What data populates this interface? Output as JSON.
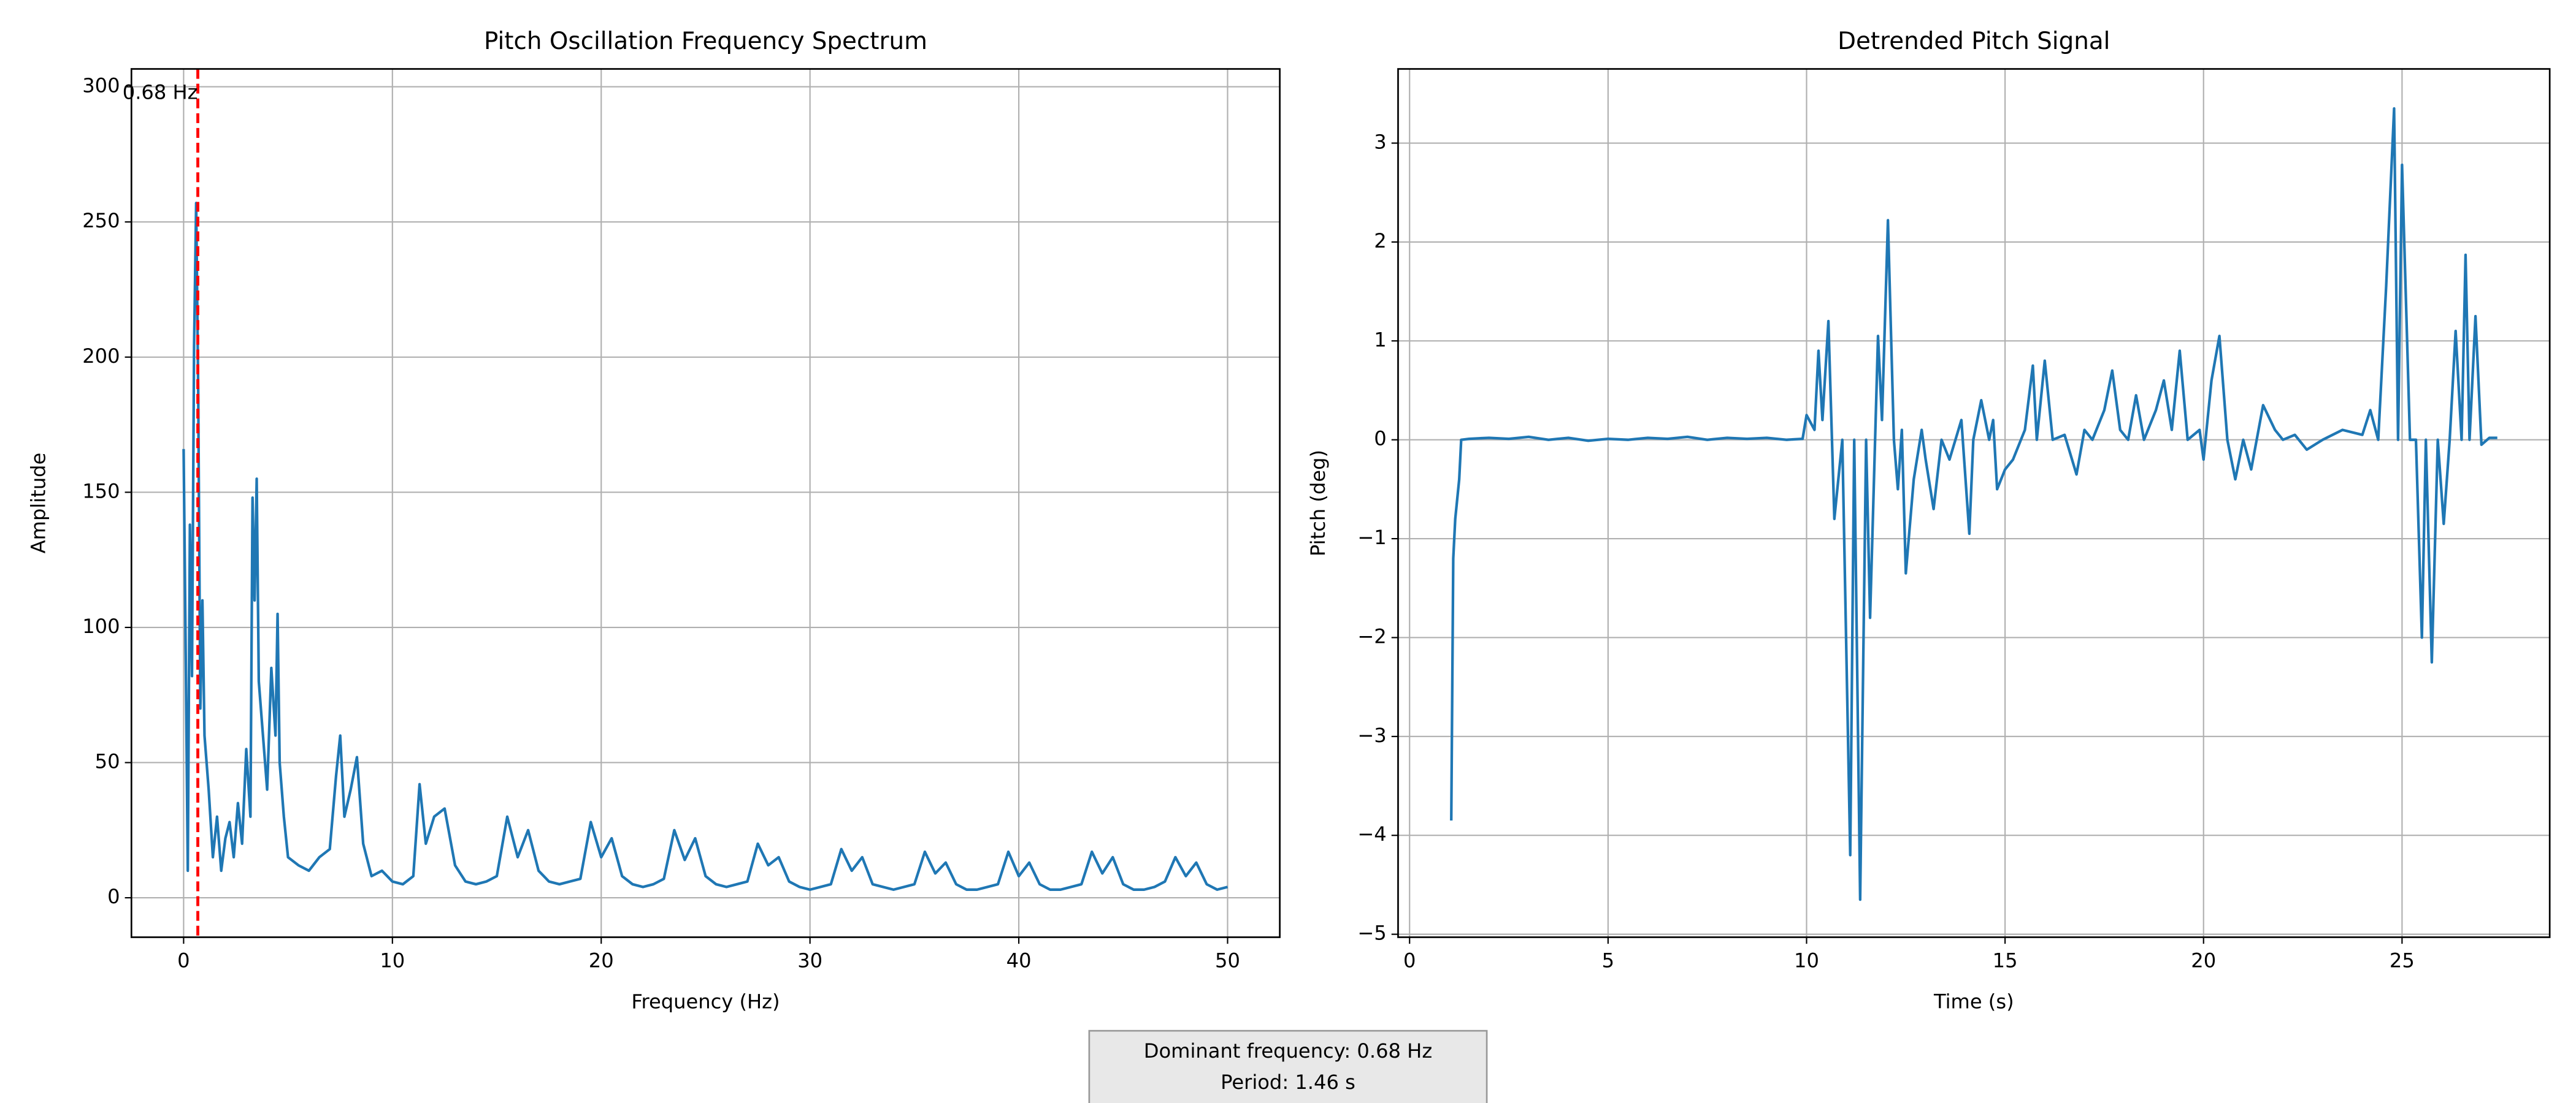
{
  "chart_data": [
    {
      "type": "line",
      "title": "Pitch Oscillation Frequency Spectrum",
      "x_label": "Frequency (Hz)",
      "y_label": "Amplitude",
      "color": "#1f77b4",
      "grid": true,
      "xlim": [
        -2.5,
        52.5
      ],
      "ylim": [
        -14.6,
        306.6
      ],
      "xticks": [
        0,
        10,
        20,
        30,
        40,
        50
      ],
      "yticks": [
        0,
        50,
        100,
        150,
        200,
        250,
        300
      ],
      "vline": {
        "value": 0.68,
        "label": "0.68 Hz",
        "color": "#ff0000"
      },
      "x": [
        0,
        0.1,
        0.2,
        0.3,
        0.4,
        0.5,
        0.6,
        0.7,
        0.8,
        0.9,
        1.0,
        1.2,
        1.4,
        1.6,
        1.8,
        2.0,
        2.2,
        2.4,
        2.6,
        2.8,
        3.0,
        3.2,
        3.3,
        3.4,
        3.5,
        3.6,
        3.8,
        4.0,
        4.2,
        4.4,
        4.5,
        4.6,
        4.8,
        5.0,
        5.5,
        6.0,
        6.5,
        7.0,
        7.3,
        7.5,
        7.7,
        8.0,
        8.3,
        8.6,
        9.0,
        9.5,
        10,
        10.5,
        11,
        11.3,
        11.6,
        12,
        12.5,
        13,
        13.5,
        14,
        14.5,
        15,
        15.5,
        16,
        16.5,
        17,
        17.5,
        18,
        18.5,
        19,
        19.5,
        20,
        20.5,
        21,
        21.5,
        22,
        22.5,
        23,
        23.5,
        24,
        24.5,
        25,
        25.5,
        26,
        26.5,
        27,
        27.5,
        28,
        28.5,
        29,
        29.5,
        30,
        30.5,
        31,
        31.5,
        32,
        32.5,
        33,
        33.5,
        34,
        34.5,
        35,
        35.5,
        36,
        36.5,
        37,
        37.5,
        38,
        38.5,
        39,
        39.5,
        40,
        40.5,
        41,
        41.5,
        42,
        42.5,
        43,
        43.5,
        44,
        44.5,
        45,
        45.5,
        46,
        46.5,
        47,
        47.5,
        48,
        48.5,
        49,
        49.5,
        50
      ],
      "values": [
        166,
        90,
        10,
        138,
        82,
        204,
        257,
        186,
        70,
        110,
        60,
        40,
        15,
        30,
        10,
        22,
        28,
        15,
        35,
        20,
        55,
        30,
        148,
        110,
        155,
        80,
        60,
        40,
        85,
        60,
        105,
        50,
        30,
        15,
        12,
        10,
        15,
        18,
        45,
        60,
        30,
        40,
        52,
        20,
        8,
        10,
        6,
        5,
        8,
        42,
        20,
        30,
        33,
        12,
        6,
        5,
        6,
        8,
        30,
        15,
        25,
        10,
        6,
        5,
        6,
        7,
        28,
        15,
        22,
        8,
        5,
        4,
        5,
        7,
        25,
        14,
        22,
        8,
        5,
        4,
        5,
        6,
        20,
        12,
        15,
        6,
        4,
        3,
        4,
        5,
        18,
        10,
        15,
        5,
        4,
        3,
        4,
        5,
        17,
        9,
        13,
        5,
        3,
        3,
        4,
        5,
        17,
        8,
        13,
        5,
        3,
        3,
        4,
        5,
        17,
        9,
        15,
        5,
        3,
        3,
        4,
        6,
        15,
        8,
        13,
        5,
        3,
        4
      ]
    },
    {
      "type": "line",
      "title": "Detrended Pitch Signal",
      "x_label": "Time (s)",
      "y_label": "Pitch (deg)",
      "color": "#1f77b4",
      "grid": true,
      "xlim": [
        -0.29,
        28.72
      ],
      "ylim": [
        -5.03,
        3.75
      ],
      "xticks": [
        0,
        5,
        10,
        15,
        20,
        25
      ],
      "yticks": [
        {
          "value": -5,
          "label": "−5"
        },
        {
          "value": -4,
          "label": "−4"
        },
        {
          "value": -3,
          "label": "−3"
        },
        {
          "value": -2,
          "label": "−2"
        },
        {
          "value": -1,
          "label": "−1"
        },
        0,
        1,
        2,
        3
      ],
      "x": [
        1.05,
        1.1,
        1.15,
        1.25,
        1.3,
        1.5,
        2,
        2.5,
        3,
        3.5,
        4,
        4.5,
        5,
        5.5,
        6,
        6.5,
        7,
        7.5,
        8,
        8.5,
        9,
        9.5,
        9.9,
        10,
        10.2,
        10.3,
        10.4,
        10.55,
        10.7,
        10.9,
        11.1,
        11.2,
        11.35,
        11.5,
        11.6,
        11.8,
        11.9,
        12.05,
        12.2,
        12.3,
        12.4,
        12.5,
        12.7,
        12.9,
        13.0,
        13.2,
        13.4,
        13.6,
        13.9,
        14.1,
        14.2,
        14.4,
        14.6,
        14.7,
        14.8,
        15.0,
        15.2,
        15.5,
        15.7,
        15.8,
        16.0,
        16.2,
        16.5,
        16.8,
        17.0,
        17.2,
        17.5,
        17.7,
        17.9,
        18.1,
        18.3,
        18.5,
        18.8,
        19.0,
        19.2,
        19.4,
        19.6,
        19.9,
        20.0,
        20.2,
        20.4,
        20.6,
        20.8,
        21.0,
        21.2,
        21.5,
        21.8,
        22.0,
        22.3,
        22.6,
        23.0,
        23.5,
        24.0,
        24.2,
        24.4,
        24.6,
        24.8,
        24.9,
        25.0,
        25.2,
        25.35,
        25.5,
        25.6,
        25.75,
        25.9,
        26.05,
        26.2,
        26.35,
        26.5,
        26.6,
        26.7,
        26.85,
        27.0,
        27.2,
        27.4
      ],
      "values": [
        -3.85,
        -1.2,
        -0.8,
        -0.4,
        0.0,
        0.01,
        0.02,
        0.01,
        0.03,
        0.0,
        0.02,
        -0.01,
        0.01,
        0.0,
        0.02,
        0.01,
        0.03,
        0.0,
        0.02,
        0.01,
        0.02,
        0.0,
        0.01,
        0.25,
        0.1,
        0.9,
        0.2,
        1.2,
        -0.8,
        0.0,
        -4.2,
        0.0,
        -4.65,
        0.0,
        -1.8,
        1.05,
        0.2,
        2.22,
        0.0,
        -0.5,
        0.1,
        -1.35,
        -0.4,
        0.1,
        -0.2,
        -0.7,
        0.0,
        -0.2,
        0.2,
        -0.95,
        0.0,
        0.4,
        0.0,
        0.2,
        -0.5,
        -0.3,
        -0.2,
        0.1,
        0.75,
        0.0,
        0.8,
        0.0,
        0.05,
        -0.35,
        0.1,
        0.0,
        0.3,
        0.7,
        0.1,
        0.0,
        0.45,
        0.0,
        0.3,
        0.6,
        0.1,
        0.9,
        0.0,
        0.1,
        -0.2,
        0.6,
        1.05,
        0.0,
        -0.4,
        0.0,
        -0.3,
        0.35,
        0.1,
        0.0,
        0.05,
        -0.1,
        0.0,
        0.1,
        0.05,
        0.3,
        0.0,
        1.55,
        3.35,
        0.0,
        2.78,
        0.0,
        0.0,
        -2.0,
        0.0,
        -2.25,
        0.0,
        -0.85,
        0.0,
        1.1,
        0.0,
        1.87,
        0.0,
        1.25,
        -0.05,
        0.02,
        0.02
      ]
    }
  ],
  "annotation": [
    "Dominant frequency: 0.68 Hz",
    "Period: 1.46 s"
  ]
}
